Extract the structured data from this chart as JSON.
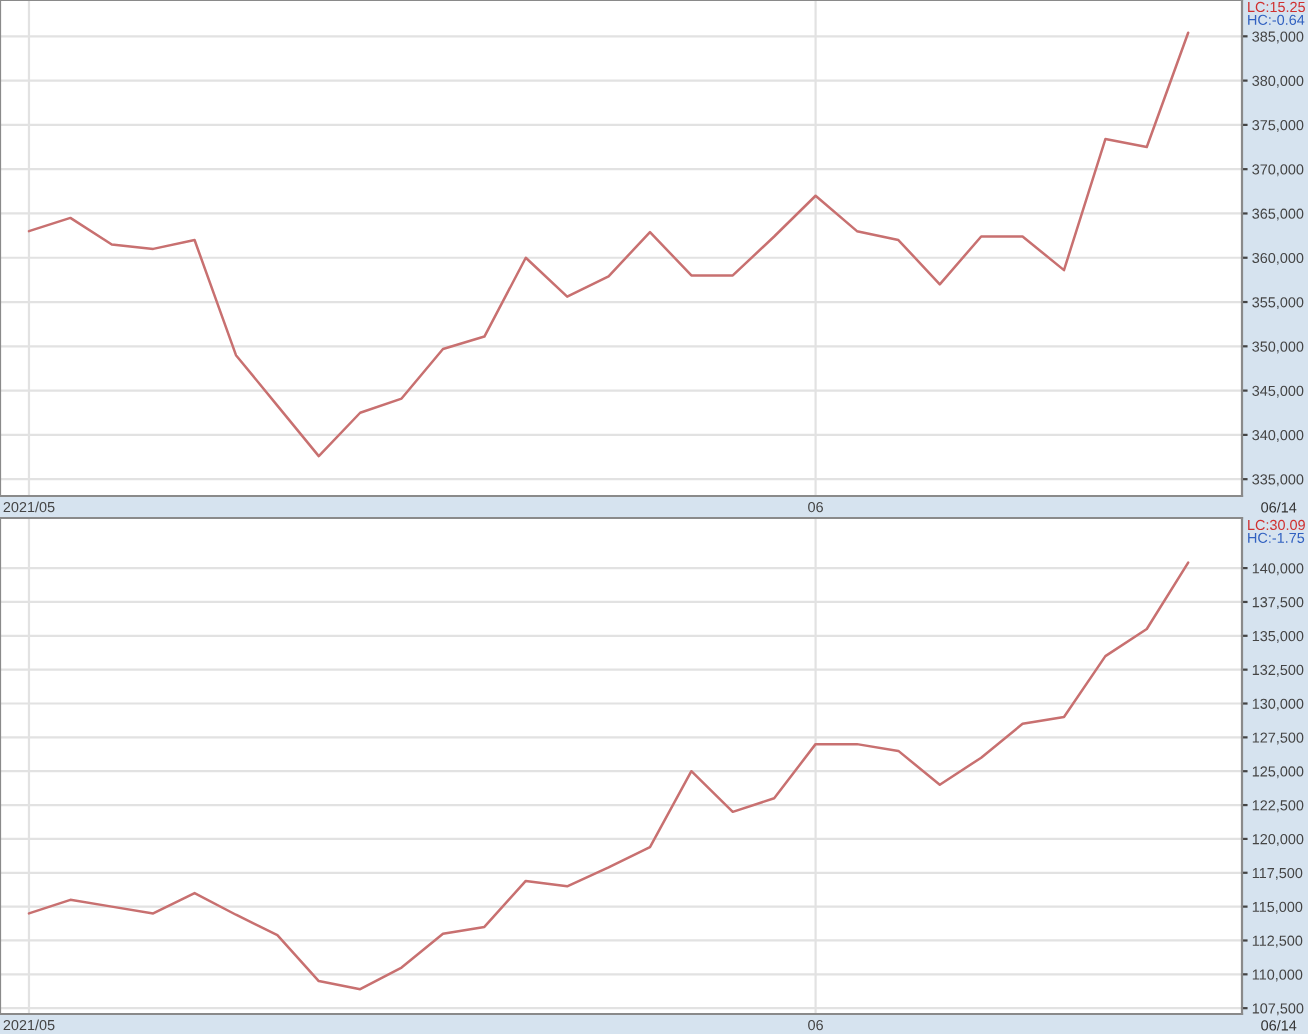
{
  "chart_data": [
    {
      "type": "line",
      "categories": [
        "2021/05",
        null,
        null,
        null,
        null,
        null,
        null,
        null,
        null,
        null,
        null,
        null,
        null,
        null,
        null,
        null,
        null,
        null,
        null,
        "06",
        null,
        null,
        null,
        null,
        null,
        null,
        null,
        null,
        null
      ],
      "series": [
        {
          "color": "#c87070",
          "values": [
            363000,
            364500,
            361500,
            361000,
            362000,
            349000,
            343300,
            337600,
            342500,
            344100,
            349700,
            351100,
            360000,
            355600,
            357900,
            362900,
            358000,
            358000,
            362400,
            367000,
            363000,
            362000,
            357000,
            362400,
            362400,
            358600,
            373400,
            372500,
            385400
          ]
        }
      ],
      "ylim": [
        333100,
        389100
      ],
      "yticks": [
        {
          "value": 335000,
          "label": "335,000"
        },
        {
          "value": 340000,
          "label": "340,000"
        },
        {
          "value": 345000,
          "label": "345,000"
        },
        {
          "value": 350000,
          "label": "350,000"
        },
        {
          "value": 355000,
          "label": "355,000"
        },
        {
          "value": 360000,
          "label": "360,000"
        },
        {
          "value": 365000,
          "label": "365,000"
        },
        {
          "value": 370000,
          "label": "370,000"
        },
        {
          "value": 375000,
          "label": "375,000"
        },
        {
          "value": 380000,
          "label": "380,000"
        },
        {
          "value": 385000,
          "label": "385,000"
        }
      ],
      "grid": true,
      "marker": "none",
      "line_style": "solid",
      "annotations": [
        "LC:15.25",
        "HC:-0.64",
        "06/14"
      ]
    },
    {
      "type": "line",
      "categories": [
        "2021/05",
        null,
        null,
        null,
        null,
        null,
        null,
        null,
        null,
        null,
        null,
        null,
        null,
        null,
        null,
        null,
        null,
        null,
        null,
        "06",
        null,
        null,
        null,
        null,
        null,
        null,
        null,
        null,
        null
      ],
      "series": [
        {
          "color": "#c87070",
          "values": [
            114500,
            115500,
            115000,
            114500,
            116000,
            114400,
            112900,
            109500,
            108900,
            110500,
            113000,
            113500,
            116900,
            116500,
            117900,
            119400,
            125000,
            122000,
            123000,
            127000,
            127000,
            126500,
            124000,
            126000,
            128500,
            129000,
            133500,
            135500,
            140400
          ]
        }
      ],
      "ylim": [
        107070,
        143700
      ],
      "yticks": [
        {
          "value": 107500,
          "label": "107,500"
        },
        {
          "value": 110000,
          "label": "110,000"
        },
        {
          "value": 112500,
          "label": "112,500"
        },
        {
          "value": 115000,
          "label": "115,000"
        },
        {
          "value": 117500,
          "label": "117,500"
        },
        {
          "value": 120000,
          "label": "120,000"
        },
        {
          "value": 122500,
          "label": "122,500"
        },
        {
          "value": 125000,
          "label": "125,000"
        },
        {
          "value": 127500,
          "label": "127,500"
        },
        {
          "value": 130000,
          "label": "130,000"
        },
        {
          "value": 132500,
          "label": "132,500"
        },
        {
          "value": 135000,
          "label": "135,000"
        },
        {
          "value": 137500,
          "label": "137,500"
        },
        {
          "value": 140000,
          "label": "140,000"
        }
      ],
      "grid": true,
      "marker": "none",
      "line_style": "solid",
      "annotations": [
        "LC:30.09",
        "HC:-1.75",
        "06/14"
      ]
    }
  ]
}
